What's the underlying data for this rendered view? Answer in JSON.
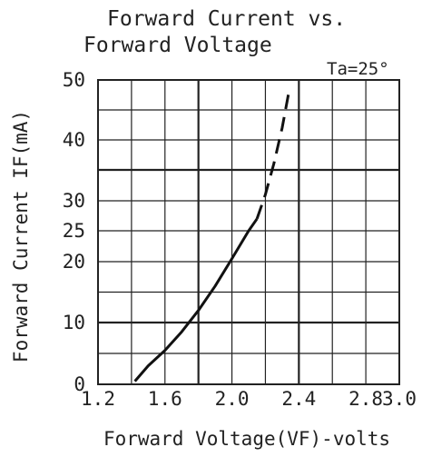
{
  "chart_data": {
    "type": "line",
    "title_lines": [
      "Forward Current vs.",
      "Forward Voltage"
    ],
    "condition": "Ta=25°",
    "xlabel": "Forward Voltage(VF)-volts",
    "ylabel": "Forward Current IF(mA)",
    "xlim": [
      1.2,
      3.0
    ],
    "x_ticks": [
      {
        "value": 1.2,
        "label": "1.2"
      },
      {
        "value": 1.6,
        "label": "1.6"
      },
      {
        "value": 2.0,
        "label": "2.0"
      },
      {
        "value": 2.4,
        "label": "2.4"
      },
      {
        "value": 2.8,
        "label": "2.8"
      },
      {
        "value": 3.0,
        "label": "3.0"
      }
    ],
    "x_grid": [
      1.2,
      1.4,
      1.6,
      1.8,
      2.0,
      2.2,
      2.4,
      2.6,
      2.8,
      3.0
    ],
    "x_grid_major": [
      1.8,
      2.4
    ],
    "y_ticks": [
      {
        "value": 0,
        "label": "0"
      },
      {
        "value": 10,
        "label": "10"
      },
      {
        "value": 20,
        "label": "20"
      },
      {
        "value": 25,
        "label": "25"
      },
      {
        "value": 30,
        "label": "30"
      },
      {
        "value": 40,
        "label": "40"
      },
      {
        "value": 50,
        "label": "50"
      }
    ],
    "y_grid_major": [
      10,
      35
    ],
    "series": [
      {
        "style": "solid",
        "x": [
          1.42,
          1.5,
          1.6,
          1.7,
          1.8,
          1.9,
          2.0,
          2.1,
          2.15
        ],
        "y": [
          0.5,
          3.0,
          5.5,
          8.5,
          12.0,
          16.0,
          20.5,
          25.0,
          27.0
        ]
      },
      {
        "style": "dashed",
        "x": [
          2.15,
          2.2,
          2.25,
          2.3,
          2.34
        ],
        "y": [
          27.0,
          31.0,
          36.0,
          42.0,
          48.0
        ]
      }
    ]
  }
}
